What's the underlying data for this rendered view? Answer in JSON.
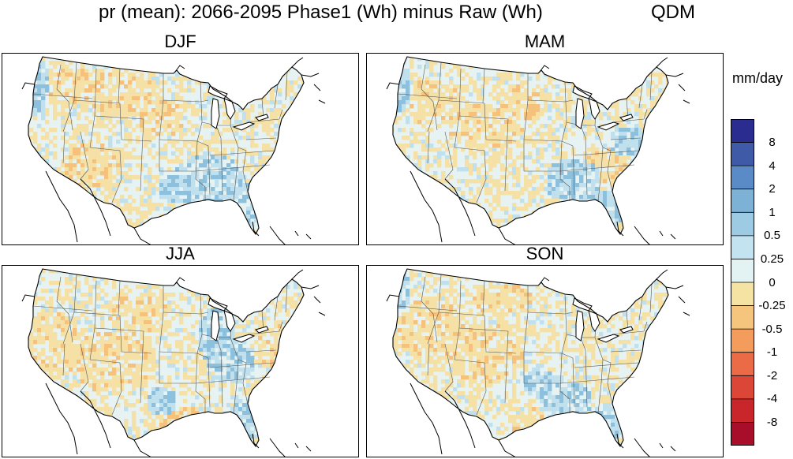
{
  "figure": {
    "title": "pr (mean): 2066-2095 Phase1 (Wh) minus Raw (Wh)",
    "method_label": "QDM"
  },
  "panels": [
    {
      "season": "DJF"
    },
    {
      "season": "MAM"
    },
    {
      "season": "JJA"
    },
    {
      "season": "SON"
    }
  ],
  "colorbar": {
    "units": "mm/day",
    "labels": [
      "8",
      "4",
      "2",
      "1",
      "0.5",
      "0.25",
      "0",
      "-0.25",
      "-0.5",
      "-1",
      "-2",
      "-4",
      "-8"
    ],
    "colors": [
      "#2a2d8f",
      "#3f5ba8",
      "#5a8bc6",
      "#7db2d6",
      "#9ccbe3",
      "#c2e3ef",
      "#e3f2f2",
      "#f5e3a4",
      "#f6c57d",
      "#f39c5c",
      "#ea6b45",
      "#dc4637",
      "#c8262b",
      "#a80d2a"
    ]
  },
  "colors": {
    "land_base": "#e6f3f2",
    "dry_tint": "#f5e1a6",
    "strong_dry": "#f6c17b",
    "wet_tint": "#bfe0ec",
    "strong_wet": "#8cc0dd"
  }
}
